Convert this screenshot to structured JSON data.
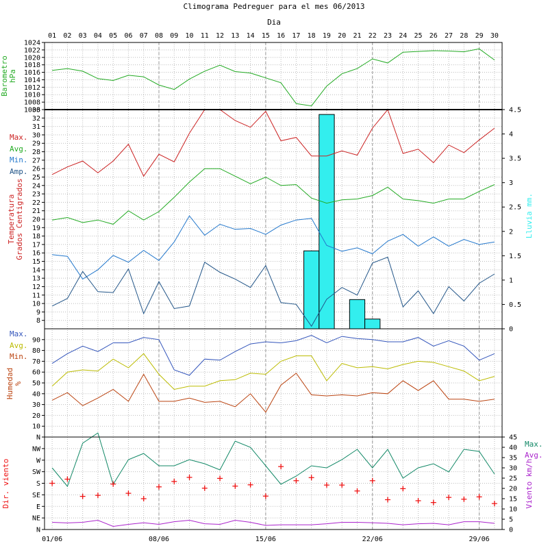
{
  "title": "Climograma Pedreguer para el mes 06/2013",
  "top_axis_title": "Dia",
  "days": [
    "01",
    "02",
    "03",
    "04",
    "05",
    "06",
    "07",
    "08",
    "09",
    "10",
    "11",
    "12",
    "13",
    "14",
    "15",
    "16",
    "17",
    "18",
    "19",
    "20",
    "21",
    "22",
    "23",
    "24",
    "25",
    "26",
    "27",
    "28",
    "29",
    "30"
  ],
  "bottom_dates": [
    "01/06",
    "08/06",
    "15/06",
    "22/06",
    "29/06"
  ],
  "colors": {
    "barometer": "#22aa22",
    "tmax": "#cc2222",
    "tavg": "#22aa22",
    "tmin": "#2277cc",
    "amp": "#225588",
    "rain": "#33eeee",
    "hmax": "#3355bb",
    "havg": "#bbbb00",
    "hmin": "#bb4411",
    "wmax": "#118866",
    "wavg": "#aa22cc",
    "dir": "#ee1111",
    "grid": "#bbbbbb"
  },
  "chart_data": [
    {
      "type": "line",
      "panel": "barometer",
      "ylabel_lines": [
        "Barometro",
        "hPa"
      ],
      "ylim": [
        1006,
        1024
      ],
      "yticks": [
        1006,
        1008,
        1010,
        1012,
        1014,
        1016,
        1018,
        1020,
        1022,
        1024
      ],
      "x": [
        "01",
        "02",
        "03",
        "04",
        "05",
        "06",
        "07",
        "08",
        "09",
        "10",
        "11",
        "12",
        "13",
        "14",
        "15",
        "16",
        "17",
        "18",
        "19",
        "20",
        "21",
        "22",
        "23",
        "24",
        "25",
        "26",
        "27",
        "28",
        "29",
        "30"
      ],
      "series": [
        {
          "key": "barometer",
          "values": [
            1016.5,
            1017,
            1016.3,
            1014.3,
            1013.8,
            1015.2,
            1014.8,
            1012.6,
            1011.4,
            1014.2,
            1016.3,
            1017.9,
            1016.2,
            1015.8,
            1014.5,
            1013.2,
            1007.6,
            1007,
            1012.3,
            1015.6,
            1017,
            1019.6,
            1018.5,
            1021.4,
            1021.6,
            1021.8,
            1021.7,
            1021.5,
            1022.3,
            1019.3
          ]
        }
      ]
    },
    {
      "type": "line",
      "panel": "temperature",
      "ylabel_lines": [
        "Temperatura",
        "Grados Centigrados"
      ],
      "ylim": [
        7,
        33
      ],
      "yticks": [
        8,
        9,
        10,
        11,
        12,
        13,
        14,
        15,
        16,
        17,
        18,
        19,
        20,
        21,
        22,
        23,
        24,
        25,
        26,
        27,
        28,
        29,
        30,
        31,
        32,
        33
      ],
      "y2label": "Lluvia mm.",
      "y2lim": [
        0,
        4.5
      ],
      "y2ticks": [
        0,
        0.5,
        1,
        1.5,
        2,
        2.5,
        3,
        3.5,
        4,
        4.5
      ],
      "x": [
        "01",
        "02",
        "03",
        "04",
        "05",
        "06",
        "07",
        "08",
        "09",
        "10",
        "11",
        "12",
        "13",
        "14",
        "15",
        "16",
        "17",
        "18",
        "19",
        "20",
        "21",
        "22",
        "23",
        "24",
        "25",
        "26",
        "27",
        "28",
        "29",
        "30"
      ],
      "series": [
        {
          "key": "tmax",
          "name": "Max.",
          "values": [
            25.3,
            26.2,
            26.9,
            25.5,
            26.9,
            28.9,
            25.1,
            27.7,
            26.8,
            30.2,
            33.0,
            33.0,
            31.7,
            30.9,
            32.8,
            29.3,
            29.7,
            27.5,
            27.5,
            28.1,
            27.6,
            30.8,
            33.0,
            27.8,
            28.3,
            26.7,
            28.8,
            27.9,
            29.4,
            30.8
          ]
        },
        {
          "key": "tavg",
          "name": "Avg.",
          "values": [
            19.9,
            20.2,
            19.6,
            19.9,
            19.4,
            21.0,
            19.9,
            20.9,
            22.6,
            24.4,
            26.0,
            26.0,
            25.1,
            24.2,
            25.0,
            24.0,
            24.1,
            22.5,
            21.9,
            22.3,
            22.4,
            22.8,
            23.8,
            22.4,
            22.2,
            21.9,
            22.4,
            22.4,
            23.3,
            24.1
          ]
        },
        {
          "key": "tmin",
          "name": "Min.",
          "values": [
            15.8,
            15.6,
            12.9,
            14.0,
            15.7,
            14.9,
            16.3,
            15.1,
            17.3,
            20.4,
            18.1,
            19.4,
            18.8,
            18.9,
            18.2,
            19.3,
            19.9,
            20.1,
            16.9,
            16.2,
            16.6,
            15.9,
            17.4,
            18.2,
            16.8,
            17.9,
            16.8,
            17.6,
            17.0,
            17.3
          ]
        },
        {
          "key": "amp",
          "name": "Amp.",
          "values": [
            9.7,
            10.6,
            13.8,
            11.4,
            11.3,
            14.1,
            8.8,
            12.6,
            9.4,
            9.7,
            14.9,
            13.7,
            12.9,
            11.9,
            14.5,
            10.1,
            9.9,
            7.3,
            10.5,
            11.9,
            11.0,
            14.8,
            15.5,
            9.6,
            11.5,
            8.8,
            12.0,
            10.3,
            12.4,
            13.5
          ]
        }
      ],
      "rain": {
        "name": "Lluvia mm.",
        "x": [
          "18",
          "19",
          "21",
          "22"
        ],
        "values": [
          1.6,
          4.4,
          0.6,
          0.2
        ]
      }
    },
    {
      "type": "line",
      "panel": "humidity",
      "ylabel_lines": [
        "Humedad",
        "%"
      ],
      "ylim": [
        0,
        100
      ],
      "yticks": [
        10,
        20,
        30,
        40,
        50,
        60,
        70,
        80,
        90
      ],
      "x": [
        "01",
        "02",
        "03",
        "04",
        "05",
        "06",
        "07",
        "08",
        "09",
        "10",
        "11",
        "12",
        "13",
        "14",
        "15",
        "16",
        "17",
        "18",
        "19",
        "20",
        "21",
        "22",
        "23",
        "24",
        "25",
        "26",
        "27",
        "28",
        "29",
        "30"
      ],
      "series": [
        {
          "key": "hmax",
          "name": "Max.",
          "values": [
            68,
            77,
            84,
            79,
            87,
            87,
            92,
            90,
            62,
            57,
            72,
            71,
            79,
            86,
            88,
            87,
            89,
            94,
            87,
            93,
            91,
            90,
            88,
            88,
            92,
            84,
            89,
            84,
            71,
            77
          ]
        },
        {
          "key": "havg",
          "name": "Avg.",
          "values": [
            47,
            60,
            62,
            61,
            72,
            64,
            77,
            58,
            44,
            47,
            47,
            52,
            53,
            59,
            58,
            70,
            75,
            75,
            52,
            68,
            64,
            65,
            63,
            67,
            70,
            69,
            65,
            61,
            52,
            56
          ]
        },
        {
          "key": "hmin",
          "name": "Min.",
          "values": [
            34,
            41,
            29,
            36,
            44,
            33,
            58,
            33,
            33,
            36,
            32,
            33,
            28,
            40,
            23,
            48,
            59,
            39,
            38,
            39,
            38,
            41,
            40,
            52,
            43,
            52,
            35,
            35,
            33,
            35
          ]
        }
      ]
    },
    {
      "type": "line",
      "panel": "wind",
      "ylabel_lines": [
        "Dir. viento"
      ],
      "y2label": "Viento km/h",
      "dir_labels": [
        "N",
        "NE",
        "E",
        "SE",
        "S",
        "SW",
        "W",
        "NW",
        "N"
      ],
      "y2lim": [
        0,
        45
      ],
      "y2ticks": [
        0,
        5,
        10,
        15,
        20,
        25,
        30,
        35,
        40,
        45
      ],
      "x": [
        "01",
        "02",
        "03",
        "04",
        "05",
        "06",
        "07",
        "08",
        "09",
        "10",
        "11",
        "12",
        "13",
        "14",
        "15",
        "16",
        "17",
        "18",
        "19",
        "20",
        "21",
        "22",
        "23",
        "24",
        "25",
        "26",
        "27",
        "28",
        "29",
        "30"
      ],
      "series": [
        {
          "key": "wmax",
          "name": "Max.",
          "values": [
            30,
            21,
            42,
            47,
            22,
            34,
            37,
            31,
            31,
            34,
            32,
            29,
            43,
            40,
            31,
            22,
            26,
            31,
            30,
            34,
            39,
            30,
            39,
            25,
            30,
            32,
            28,
            39,
            38,
            27
          ]
        },
        {
          "key": "wavg",
          "name": "Avg.",
          "values": [
            3.5,
            3.2,
            3.5,
            4.5,
            1.5,
            2.5,
            3.3,
            2.5,
            3.8,
            4.5,
            2.8,
            2.5,
            4.5,
            3.5,
            2.0,
            2.3,
            2.3,
            2.3,
            2.8,
            3.5,
            3.5,
            3.3,
            3.0,
            2.3,
            2.8,
            3.0,
            2.3,
            3.8,
            3.8,
            3.0
          ]
        }
      ],
      "direction_degrees": [
        180,
        196,
        129,
        133,
        177,
        141,
        120,
        166,
        187,
        203,
        161,
        199,
        169,
        174,
        130,
        245,
        190,
        202,
        173,
        173,
        150,
        190,
        116,
        159,
        112,
        105,
        125,
        118,
        127,
        101
      ]
    }
  ]
}
